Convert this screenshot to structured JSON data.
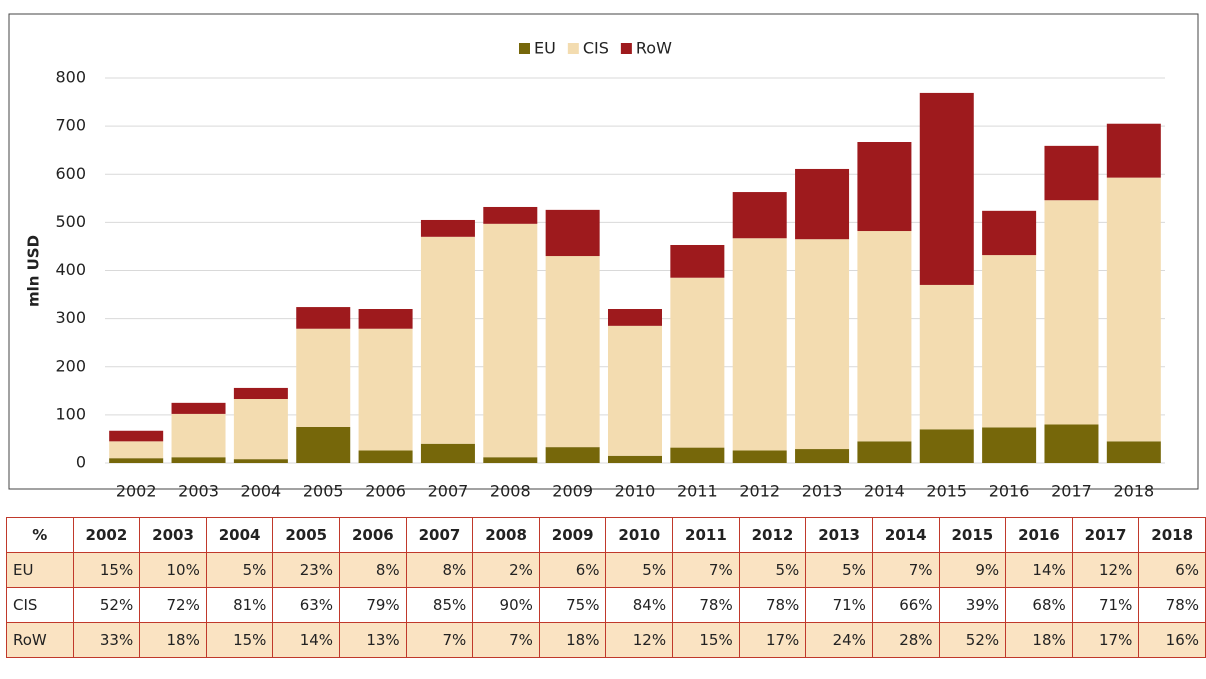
{
  "chart_data": {
    "type": "bar",
    "stacked": true,
    "y_label": "mln USD",
    "categories": [
      "2002",
      "2003",
      "2004",
      "2005",
      "2006",
      "2007",
      "2008",
      "2009",
      "2010",
      "2011",
      "2012",
      "2013",
      "2014",
      "2015",
      "2016",
      "2017",
      "2018"
    ],
    "series": [
      {
        "name": "EU",
        "color": "#76670a",
        "values": [
          10,
          12,
          8,
          75,
          26,
          40,
          12,
          33,
          15,
          32,
          26,
          29,
          45,
          70,
          74,
          80,
          45
        ]
      },
      {
        "name": "CIS",
        "color": "#f3dcb0",
        "values": [
          35,
          90,
          125,
          204,
          253,
          430,
          485,
          397,
          270,
          353,
          441,
          436,
          437,
          300,
          358,
          466,
          548
        ]
      },
      {
        "name": "RoW",
        "color": "#9e1a1d",
        "values": [
          22,
          23,
          23,
          45,
          41,
          35,
          35,
          96,
          35,
          68,
          96,
          146,
          185,
          399,
          92,
          113,
          112
        ]
      }
    ],
    "ylim": [
      0,
      800
    ],
    "yticks": [
      0,
      100,
      200,
      300,
      400,
      500,
      600,
      700,
      800
    ],
    "grid": true,
    "legend": "top"
  },
  "table": {
    "header": [
      "%",
      "2002",
      "2003",
      "2004",
      "2005",
      "2006",
      "2007",
      "2008",
      "2009",
      "2010",
      "2011",
      "2012",
      "2013",
      "2014",
      "2015",
      "2016",
      "2017",
      "2018"
    ],
    "rows": [
      [
        "EU",
        "15%",
        "10%",
        "5%",
        "23%",
        "8%",
        "8%",
        "2%",
        "6%",
        "5%",
        "7%",
        "5%",
        "5%",
        "7%",
        "9%",
        "14%",
        "12%",
        "6%"
      ],
      [
        "CIS",
        "52%",
        "72%",
        "81%",
        "63%",
        "79%",
        "85%",
        "90%",
        "75%",
        "84%",
        "78%",
        "78%",
        "71%",
        "66%",
        "39%",
        "68%",
        "71%",
        "78%"
      ],
      [
        "RoW",
        "33%",
        "18%",
        "15%",
        "14%",
        "13%",
        "7%",
        "7%",
        "18%",
        "12%",
        "15%",
        "17%",
        "24%",
        "28%",
        "52%",
        "18%",
        "17%",
        "16%"
      ]
    ]
  }
}
